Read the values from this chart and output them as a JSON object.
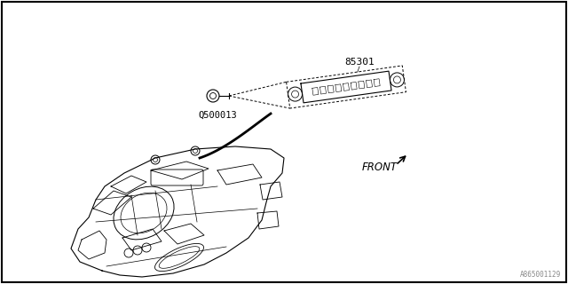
{
  "bg_color": "#ffffff",
  "border_color": "#000000",
  "fig_width": 6.4,
  "fig_height": 3.2,
  "dpi": 100,
  "part_label_85301": "85301",
  "part_label_Q500013": "Q500013",
  "part_label_FRONT": "FRONT",
  "watermark": "A865001129",
  "line_color": "#000000"
}
